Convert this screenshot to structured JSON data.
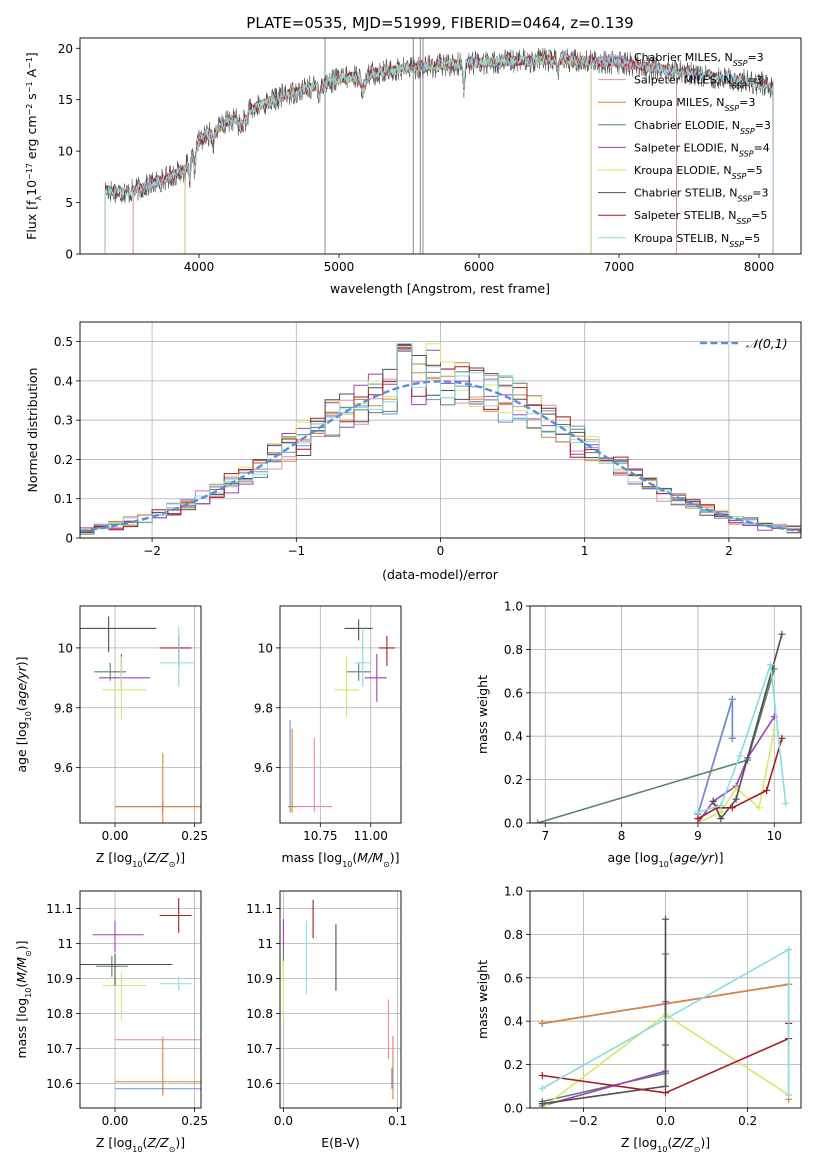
{
  "colors": {
    "chabrier_miles": "#6a90d8",
    "salpeter_miles": "#e68aae",
    "kroupa_miles": "#d9853b",
    "chabrier_elodie": "#5a8566",
    "salpeter_elodie": "#a040bf",
    "kroupa_elodie": "#d6e868",
    "chabrier_stelib": "#505050",
    "salpeter_stelib": "#a81c24",
    "kroupa_stelib": "#88dde0",
    "normal": "#5a8fd5"
  },
  "chart_data": [
    {
      "id": "spectrum",
      "type": "line",
      "title": "PLATE=0535, MJD=51999, FIBERID=0464, z=0.139",
      "xlabel": "wavelength [Angstrom, rest frame]",
      "ylabel": "Flux [f_λ 10^-17 erg cm^-2 s^-1 A^-1]",
      "xlim": [
        3150,
        8300
      ],
      "ylim": [
        0,
        21
      ],
      "xticks": [
        4000,
        5000,
        6000,
        7000,
        8000
      ],
      "yticks": [
        0,
        5,
        10,
        15,
        20
      ],
      "legend_position": "upper-right",
      "series": [
        {
          "name": "Chabrier MILES, N_SSP=3",
          "range": [
            3530,
            7410
          ]
        },
        {
          "name": "Salpeter MILES, N_SSP=3",
          "range": [
            3530,
            7410
          ]
        },
        {
          "name": "Kroupa MILES, N_SSP=3",
          "range": [
            3530,
            7410
          ]
        },
        {
          "name": "Chabrier ELODIE, N_SSP=3",
          "range": [
            3900,
            6800
          ]
        },
        {
          "name": "Salpeter ELODIE, N_SSP=4",
          "range": [
            3900,
            6800
          ]
        },
        {
          "name": "Kroupa ELODIE, N_SSP=5",
          "range": [
            3900,
            6800
          ]
        },
        {
          "name": "Chabrier STELIB, N_SSP=3",
          "range": [
            3330,
            8100
          ]
        },
        {
          "name": "Salpeter STELIB, N_SSP=5",
          "range": [
            3330,
            8100
          ]
        },
        {
          "name": "Kroupa STELIB, N_SSP=5",
          "range": [
            3330,
            8100
          ]
        }
      ],
      "continuum": {
        "x": [
          3330,
          3500,
          3700,
          3900,
          4000,
          4200,
          4400,
          4600,
          4800,
          5000,
          5200,
          5500,
          6000,
          6500,
          7000,
          7500,
          8000,
          8100
        ],
        "y": [
          6.2,
          6.0,
          7.0,
          8.2,
          11.0,
          12.8,
          14.2,
          15.4,
          16.2,
          17.0,
          17.5,
          18.1,
          18.6,
          18.9,
          18.6,
          17.6,
          16.6,
          16.3
        ]
      },
      "spikes": [
        4900,
        5530,
        5580,
        5600
      ]
    },
    {
      "id": "residuals",
      "type": "histogram",
      "xlabel": "(data-model)/error",
      "ylabel": "Normed distribution",
      "xlim": [
        -2.5,
        2.5
      ],
      "ylim": [
        0,
        0.55
      ],
      "xticks": [
        -2,
        -1,
        0,
        1,
        2
      ],
      "yticks": [
        0,
        0.1,
        0.2,
        0.3,
        0.4,
        0.5
      ],
      "bin_width": 0.1,
      "gaussian_label": "𝒩(0,1)",
      "legend_position": "upper-right"
    },
    {
      "id": "age_vs_Z",
      "type": "errorbar",
      "xlabel": "Z [log10(Z/Z⊙)]",
      "ylabel": "age  [log10(age/yr)]",
      "xlim": [
        -0.11,
        0.27
      ],
      "ylim": [
        9.415,
        10.14
      ],
      "xticks": [
        0.0,
        0.25
      ],
      "xticklabels": [
        "0.00",
        "0.25"
      ],
      "yticks": [
        9.6,
        9.8,
        10.0
      ],
      "points": [
        {
          "s": "chabrier_miles",
          "x": 0.15,
          "xerr": [
            0.15,
            0.15
          ],
          "y": 9.47,
          "yerr": [
            0.02,
            0.02
          ]
        },
        {
          "s": "salpeter_miles",
          "x": 0.15,
          "xerr": [
            0.15,
            0.15
          ],
          "y": 9.47,
          "yerr": [
            0.02,
            0.02
          ]
        },
        {
          "s": "kroupa_miles",
          "x": 0.15,
          "xerr": [
            0.15,
            0.15
          ],
          "y": 9.47,
          "yerr": [
            0.18,
            0.18
          ]
        },
        {
          "s": "chabrier_elodie",
          "x": -0.015,
          "xerr": [
            0.05,
            0.05
          ],
          "y": 9.92,
          "yerr": [
            0.03,
            0.03
          ]
        },
        {
          "s": "salpeter_elodie",
          "x": 0.02,
          "xerr": [
            0.07,
            0.09
          ],
          "y": 9.9,
          "yerr": [
            0.04,
            0.08
          ]
        },
        {
          "s": "kroupa_elodie",
          "x": 0.02,
          "xerr": [
            0.06,
            0.08
          ],
          "y": 9.86,
          "yerr": [
            0.1,
            0.11
          ]
        },
        {
          "s": "chabrier_stelib",
          "x": -0.02,
          "xerr": [
            0.1,
            0.15
          ],
          "y": 10.065,
          "yerr": [
            0.08,
            0.04
          ]
        },
        {
          "s": "salpeter_stelib",
          "x": 0.2,
          "xerr": [
            0.06,
            0.04
          ],
          "y": 10.0,
          "yerr": [
            0.06,
            0.04
          ]
        },
        {
          "s": "kroupa_stelib",
          "x": 0.2,
          "xerr": [
            0.06,
            0.05
          ],
          "y": 9.95,
          "yerr": [
            0.08,
            0.12
          ]
        }
      ]
    },
    {
      "id": "age_vs_mass",
      "type": "errorbar",
      "xlabel": "mass [log10(M/M⊙)]",
      "ylabel": "",
      "xlim": [
        10.55,
        11.15
      ],
      "ylim": [
        9.415,
        10.14
      ],
      "xticks": [
        10.75,
        11.0
      ],
      "xticklabels": [
        "10.75",
        "11.00"
      ],
      "yticks": [
        9.6,
        9.8,
        10.0
      ],
      "points": [
        {
          "s": "chabrier_miles",
          "x": 10.6,
          "xerr": [
            0.01,
            0.01
          ],
          "y": 9.47,
          "yerr": [
            0.02,
            0.29
          ]
        },
        {
          "s": "salpeter_miles",
          "x": 10.72,
          "xerr": [
            0.12,
            0.09
          ],
          "y": 9.47,
          "yerr": [
            0.02,
            0.23
          ]
        },
        {
          "s": "kroupa_miles",
          "x": 10.61,
          "xerr": [
            0.02,
            0.02
          ],
          "y": 9.47,
          "yerr": [
            0.02,
            0.26
          ]
        },
        {
          "s": "chabrier_elodie",
          "x": 10.94,
          "xerr": [
            0.06,
            0.06
          ],
          "y": 9.92,
          "yerr": [
            0.03,
            0.03
          ]
        },
        {
          "s": "salpeter_elodie",
          "x": 11.03,
          "xerr": [
            0.06,
            0.05
          ],
          "y": 9.9,
          "yerr": [
            0.08,
            0.08
          ]
        },
        {
          "s": "kroupa_elodie",
          "x": 10.88,
          "xerr": [
            0.06,
            0.06
          ],
          "y": 9.86,
          "yerr": [
            0.09,
            0.11
          ]
        },
        {
          "s": "chabrier_stelib",
          "x": 10.94,
          "xerr": [
            0.07,
            0.07
          ],
          "y": 10.065,
          "yerr": [
            0.04,
            0.03
          ]
        },
        {
          "s": "salpeter_stelib",
          "x": 11.08,
          "xerr": [
            0.04,
            0.04
          ],
          "y": 10.0,
          "yerr": [
            0.06,
            0.04
          ]
        },
        {
          "s": "kroupa_stelib",
          "x": 10.96,
          "xerr": [
            0.04,
            0.04
          ],
          "y": 9.95,
          "yerr": [
            0.08,
            0.12
          ]
        }
      ]
    },
    {
      "id": "massweight_vs_age",
      "type": "line",
      "xlabel": "age  [log10(age/yr)]",
      "ylabel": "mass weight",
      "xlim": [
        6.8,
        10.35
      ],
      "ylim": [
        0,
        1.0
      ],
      "xticks": [
        7,
        8,
        9,
        10
      ],
      "yticks": [
        0,
        0.2,
        0.4,
        0.6,
        0.8,
        1.0
      ],
      "yticklabels": [
        "0.0",
        "0.2",
        "0.4",
        "0.6",
        "0.8",
        "1.0"
      ],
      "series": [
        {
          "s": "kroupa_miles",
          "x": [
            9.0,
            9.45,
            9.45
          ],
          "y": [
            0.04,
            0.57,
            0.39
          ]
        },
        {
          "s": "salpeter_miles",
          "x": [
            9.0,
            9.45,
            9.45
          ],
          "y": [
            0.04,
            0.57,
            0.39
          ]
        },
        {
          "s": "chabrier_miles",
          "x": [
            9.0,
            9.45,
            9.45
          ],
          "y": [
            0.04,
            0.57,
            0.39
          ]
        },
        {
          "s": "chabrier_elodie",
          "x": [
            6.9,
            9.65,
            10.0
          ],
          "y": [
            0.0,
            0.29,
            0.71
          ]
        },
        {
          "s": "salpeter_elodie",
          "x": [
            9.0,
            9.2,
            9.5,
            9.65,
            10.0
          ],
          "y": [
            0.0,
            0.1,
            0.17,
            0.3,
            0.49
          ]
        },
        {
          "s": "kroupa_elodie",
          "x": [
            9.0,
            9.3,
            9.5,
            9.8,
            10.0
          ],
          "y": [
            0.0,
            0.05,
            0.16,
            0.07,
            0.43
          ]
        },
        {
          "s": "chabrier_stelib",
          "x": [
            9.2,
            9.3,
            9.5,
            10.1
          ],
          "y": [
            0.1,
            0.02,
            0.11,
            0.87
          ]
        },
        {
          "s": "salpeter_stelib",
          "x": [
            9.0,
            9.25,
            9.45,
            9.9,
            10.1
          ],
          "y": [
            0.02,
            0.07,
            0.07,
            0.15,
            0.39
          ]
        },
        {
          "s": "kroupa_stelib",
          "x": [
            9.0,
            9.3,
            9.55,
            9.95,
            10.15
          ],
          "y": [
            0.05,
            0.08,
            0.31,
            0.73,
            0.09
          ]
        }
      ]
    },
    {
      "id": "mass_vs_Z",
      "type": "errorbar",
      "xlabel": "Z [log10(Z/Z⊙)]",
      "ylabel": "mass [log10(M/M⊙)]",
      "xlim": [
        -0.11,
        0.27
      ],
      "ylim": [
        10.53,
        11.15
      ],
      "xticks": [
        0.0,
        0.25
      ],
      "xticklabels": [
        "0.00",
        "0.25"
      ],
      "yticks": [
        10.6,
        10.7,
        10.8,
        10.9,
        11.0,
        11.1
      ],
      "points": [
        {
          "s": "chabrier_miles",
          "x": 0.15,
          "xerr": [
            0.15,
            0.16
          ],
          "y": 10.585,
          "yerr": [
            0.01,
            0.01
          ]
        },
        {
          "s": "salpeter_miles",
          "x": 0.15,
          "xerr": [
            0.15,
            0.16
          ],
          "y": 10.725,
          "yerr": [
            0.01,
            0.01
          ]
        },
        {
          "s": "kroupa_miles",
          "x": 0.15,
          "xerr": [
            0.15,
            0.16
          ],
          "y": 10.605,
          "yerr": [
            0.04,
            0.12
          ]
        },
        {
          "s": "chabrier_elodie",
          "x": -0.01,
          "xerr": [
            0.05,
            0.05
          ],
          "y": 10.935,
          "yerr": [
            0.03,
            0.03
          ]
        },
        {
          "s": "salpeter_elodie",
          "x": 0.0,
          "xerr": [
            0.07,
            0.09
          ],
          "y": 11.025,
          "yerr": [
            0.05,
            0.04
          ]
        },
        {
          "s": "kroupa_elodie",
          "x": 0.02,
          "xerr": [
            0.06,
            0.08
          ],
          "y": 10.88,
          "yerr": [
            0.1,
            0.04
          ]
        },
        {
          "s": "chabrier_stelib",
          "x": -0.0,
          "xerr": [
            0.12,
            0.18
          ],
          "y": 10.94,
          "yerr": [
            0.06,
            0.03
          ]
        },
        {
          "s": "salpeter_stelib",
          "x": 0.2,
          "xerr": [
            0.06,
            0.04
          ],
          "y": 11.08,
          "yerr": [
            0.05,
            0.05
          ]
        },
        {
          "s": "kroupa_stelib",
          "x": 0.2,
          "xerr": [
            0.06,
            0.04
          ],
          "y": 10.885,
          "yerr": [
            0.02,
            0.02
          ]
        }
      ]
    },
    {
      "id": "mass_vs_ebv",
      "type": "errorbar",
      "xlabel": "E(B-V)",
      "ylabel": "",
      "xlim": [
        -0.003,
        0.103
      ],
      "ylim": [
        10.53,
        11.15
      ],
      "xticks": [
        0.0,
        0.1
      ],
      "xticklabels": [
        "0.0",
        "0.1"
      ],
      "yticks": [
        10.6,
        10.7,
        10.8,
        10.9,
        11.0,
        11.1
      ],
      "points": [
        {
          "s": "chabrier_miles",
          "x": 0.095,
          "y": 10.615,
          "yerr": [
            0.03,
            0.03
          ]
        },
        {
          "s": "salpeter_miles",
          "x": 0.092,
          "y": 10.76,
          "yerr": [
            0.09,
            0.08
          ]
        },
        {
          "s": "kroupa_miles",
          "x": 0.096,
          "y": 10.645,
          "yerr": [
            0.09,
            0.09
          ]
        },
        {
          "s": "chabrier_elodie",
          "x": 0.0,
          "y": 10.95,
          "yerr": [
            0.03,
            0.03
          ]
        },
        {
          "s": "salpeter_elodie",
          "x": 0.0,
          "y": 11.03,
          "yerr": [
            0.05,
            0.04
          ]
        },
        {
          "s": "kroupa_elodie",
          "x": 0.0,
          "y": 10.87,
          "yerr": [
            0.09,
            0.08
          ]
        },
        {
          "s": "chabrier_stelib",
          "x": 0.046,
          "y": 10.965,
          "yerr": [
            0.1,
            0.09
          ]
        },
        {
          "s": "salpeter_stelib",
          "x": 0.026,
          "y": 11.075,
          "yerr": [
            0.06,
            0.05
          ]
        },
        {
          "s": "kroupa_stelib",
          "x": 0.02,
          "y": 10.965,
          "yerr": [
            0.11,
            0.1
          ]
        }
      ]
    },
    {
      "id": "massweight_vs_Z",
      "type": "line",
      "xlabel": "Z [log10(Z/Z⊙)]",
      "ylabel": "mass weight",
      "xlim": [
        -0.33,
        0.33
      ],
      "ylim": [
        0,
        1.0
      ],
      "xticks": [
        -0.2,
        0.0,
        0.2
      ],
      "xticklabels": [
        "−0.2",
        "0.0",
        "0.2"
      ],
      "yticks": [
        0,
        0.2,
        0.4,
        0.6,
        0.8,
        1.0
      ],
      "yticklabels": [
        "0.0",
        "0.2",
        "0.4",
        "0.6",
        "0.8",
        "1.0"
      ],
      "series": [
        {
          "s": "chabrier_miles",
          "x": [
            -0.3,
            0.0,
            0.3
          ],
          "y": [
            0.39,
            0.48,
            0.57
          ]
        },
        {
          "s": "salpeter_miles",
          "x": [
            -0.3,
            0.0,
            0.3
          ],
          "y": [
            0.39,
            0.48,
            0.57
          ]
        },
        {
          "s": "kroupa_miles",
          "x": [
            -0.3,
            0.0,
            0.3,
            0.3
          ],
          "y": [
            0.39,
            0.48,
            0.57,
            0.04
          ]
        },
        {
          "s": "chabrier_elodie",
          "x": [
            -0.3,
            0.0,
            0.0
          ],
          "y": [
            0.03,
            0.16,
            0.71
          ]
        },
        {
          "s": "salpeter_elodie",
          "x": [
            -0.3,
            0.0,
            0.0
          ],
          "y": [
            0.01,
            0.17,
            0.49
          ]
        },
        {
          "s": "kroupa_elodie",
          "x": [
            -0.3,
            0.0,
            0.3
          ],
          "y": [
            0.0,
            0.43,
            0.06
          ]
        },
        {
          "s": "chabrier_stelib",
          "x": [
            -0.3,
            0.0,
            0.0,
            0.0
          ],
          "y": [
            0.02,
            0.1,
            0.87,
            0.29
          ]
        },
        {
          "s": "salpeter_stelib",
          "x": [
            -0.3,
            0.0,
            0.3,
            0.3
          ],
          "y": [
            0.15,
            0.07,
            0.32,
            0.39
          ]
        },
        {
          "s": "kroupa_stelib",
          "x": [
            -0.3,
            0.3,
            0.3
          ],
          "y": [
            0.09,
            0.73,
            0.06
          ]
        }
      ]
    }
  ]
}
